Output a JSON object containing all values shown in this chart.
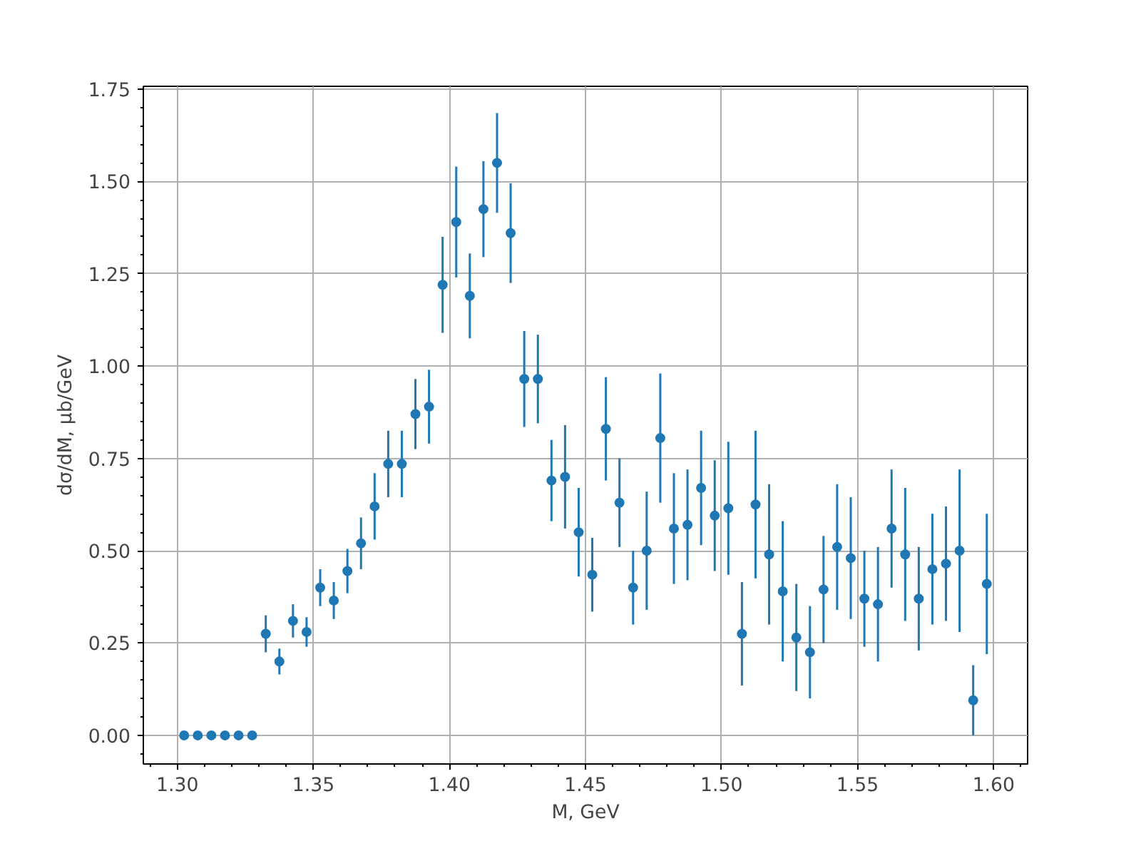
{
  "chart_data": {
    "type": "scatter",
    "xlabel": "M, GeV",
    "ylabel": "dσ/dM, μb/GeV",
    "x": [
      1.3025,
      1.3075,
      1.3125,
      1.3175,
      1.3225,
      1.3275,
      1.3325,
      1.3375,
      1.3425,
      1.3475,
      1.3525,
      1.3575,
      1.3625,
      1.3675,
      1.3725,
      1.3775,
      1.3825,
      1.3875,
      1.3925,
      1.3975,
      1.4025,
      1.4075,
      1.4125,
      1.4175,
      1.4225,
      1.4275,
      1.4325,
      1.4375,
      1.4425,
      1.4475,
      1.4525,
      1.4575,
      1.4625,
      1.4675,
      1.4725,
      1.4775,
      1.4825,
      1.4875,
      1.4925,
      1.4975,
      1.5025,
      1.5075,
      1.5125,
      1.5175,
      1.5225,
      1.5275,
      1.5325,
      1.5375,
      1.5425,
      1.5475,
      1.5525,
      1.5575,
      1.5625,
      1.5675,
      1.5725,
      1.5775,
      1.5825,
      1.5875,
      1.5925,
      1.5975
    ],
    "series": [
      {
        "color": "#1f77b4",
        "values": [
          0,
          0,
          0,
          0,
          0,
          0,
          0.275,
          0.2,
          0.31,
          0.28,
          0.4,
          0.365,
          0.445,
          0.52,
          0.62,
          0.735,
          0.735,
          0.87,
          0.89,
          1.22,
          1.39,
          1.19,
          1.425,
          1.55,
          1.36,
          0.965,
          0.965,
          0.69,
          0.7,
          0.55,
          0.435,
          0.83,
          0.63,
          0.4,
          0.5,
          0.805,
          0.56,
          0.57,
          0.67,
          0.595,
          0.615,
          0.275,
          0.625,
          0.49,
          0.39,
          0.265,
          0.225,
          0.395,
          0.51,
          0.48,
          0.37,
          0.355,
          0.56,
          0.49,
          0.37,
          0.45,
          0.465,
          0.5,
          0.095,
          0.41
        ],
        "errors": [
          null,
          null,
          null,
          null,
          null,
          null,
          0.05,
          0.035,
          0.045,
          0.04,
          0.05,
          0.05,
          0.06,
          0.07,
          0.09,
          0.09,
          0.09,
          0.095,
          0.1,
          0.13,
          0.15,
          0.115,
          0.13,
          0.135,
          0.135,
          0.13,
          0.12,
          0.11,
          0.14,
          0.12,
          0.1,
          0.14,
          0.12,
          0.1,
          0.16,
          0.175,
          0.15,
          0.15,
          0.155,
          0.15,
          0.18,
          0.14,
          0.2,
          0.19,
          0.19,
          0.145,
          0.125,
          0.145,
          0.17,
          0.165,
          0.13,
          0.155,
          0.16,
          0.18,
          0.14,
          0.15,
          0.155,
          0.22,
          0.095,
          0.19
        ]
      }
    ],
    "xlim": [
      1.2875,
      1.6125
    ],
    "ylim": [
      -0.0775,
      1.7575
    ],
    "xticks": [
      {
        "value": 1.3,
        "label": "1.30"
      },
      1.35,
      {
        "value": 1.4,
        "label": "1.40"
      },
      1.45,
      {
        "value": 1.5,
        "label": "1.50"
      },
      1.55,
      {
        "value": 1.6,
        "label": "1.60"
      }
    ],
    "yticks": [
      {
        "value": 0,
        "label": "0.00"
      },
      0.25,
      {
        "value": 0.5,
        "label": "0.50"
      },
      0.75,
      {
        "value": 1,
        "label": "1.00"
      },
      1.25,
      {
        "value": 1.5,
        "label": "1.50"
      },
      1.75
    ],
    "grid": true,
    "marker": "circle"
  }
}
